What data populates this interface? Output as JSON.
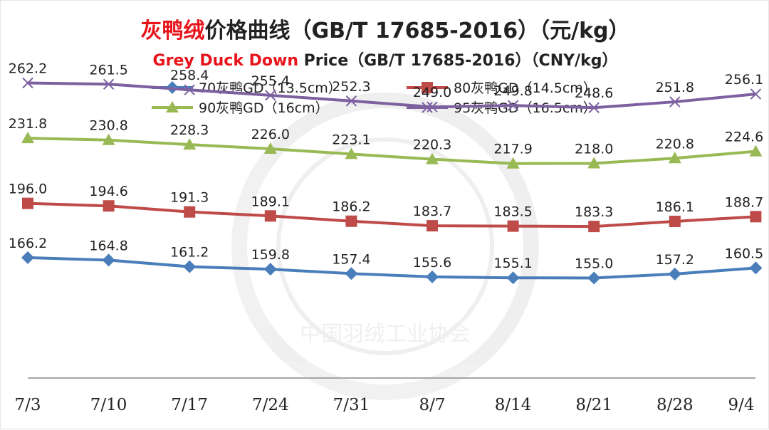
{
  "chart_data": {
    "type": "line",
    "title": {
      "highlight": "灰鸭绒",
      "rest": "价格曲线（GB/T 17685-2016）（元/kg）",
      "highlight_color": "#e8141b"
    },
    "subtitle": {
      "highlight": "Grey Duck Down",
      "rest": " Price（GB/T 17685-2016）（CNY/kg）",
      "highlight_color": "#e8141b"
    },
    "watermark": "中国羽绒工业协会",
    "categories": [
      "7/3",
      "7/10",
      "7/17",
      "7/24",
      "7/31",
      "8/7",
      "8/14",
      "8/21",
      "8/28",
      "9/4"
    ],
    "ylim": [
      100,
      280
    ],
    "grid": false,
    "legend_position": "top",
    "series": [
      {
        "name": "70灰鸭GD（13.5cm）",
        "color": "#4a7ebb",
        "marker": "diamond",
        "values": [
          166.2,
          164.8,
          161.2,
          159.8,
          157.4,
          155.6,
          155.1,
          155.0,
          157.2,
          160.5
        ],
        "labels": [
          "166.2",
          "164.8",
          "161.2",
          "159.8",
          "157.4",
          "155.6",
          "155.1",
          "155.0",
          "157.2",
          "160.5"
        ]
      },
      {
        "name": "80灰鸭GD（14.5cm）",
        "color": "#be4b48",
        "marker": "square",
        "values": [
          196.0,
          194.6,
          191.3,
          189.1,
          186.2,
          183.7,
          183.5,
          183.3,
          186.1,
          188.7
        ],
        "labels": [
          "196.0",
          "194.6",
          "191.3",
          "189.1",
          "186.2",
          "183.7",
          "183.5",
          "183.3",
          "186.1",
          "188.7"
        ]
      },
      {
        "name": "90灰鸭GD（16cm）",
        "color": "#98b954",
        "marker": "triangle",
        "values": [
          231.8,
          230.8,
          228.3,
          226.0,
          223.1,
          220.3,
          217.9,
          218.0,
          220.8,
          224.6
        ],
        "labels": [
          "231.8",
          "230.8",
          "228.3",
          "226.0",
          "223.1",
          "220.3",
          "217.9",
          "218.0",
          "220.8",
          "224.6"
        ]
      },
      {
        "name": "95灰鸭GD（16.5cm）",
        "color": "#7d60a0",
        "marker": "x",
        "values": [
          262.2,
          261.5,
          258.4,
          255.4,
          252.3,
          249.0,
          249.8,
          248.6,
          251.8,
          256.1
        ],
        "labels": [
          "262.2",
          "261.5",
          "258.4",
          "255.4",
          "252.3",
          "249.0",
          "249.8",
          "248.6",
          "251.8",
          "256.1"
        ]
      }
    ]
  }
}
